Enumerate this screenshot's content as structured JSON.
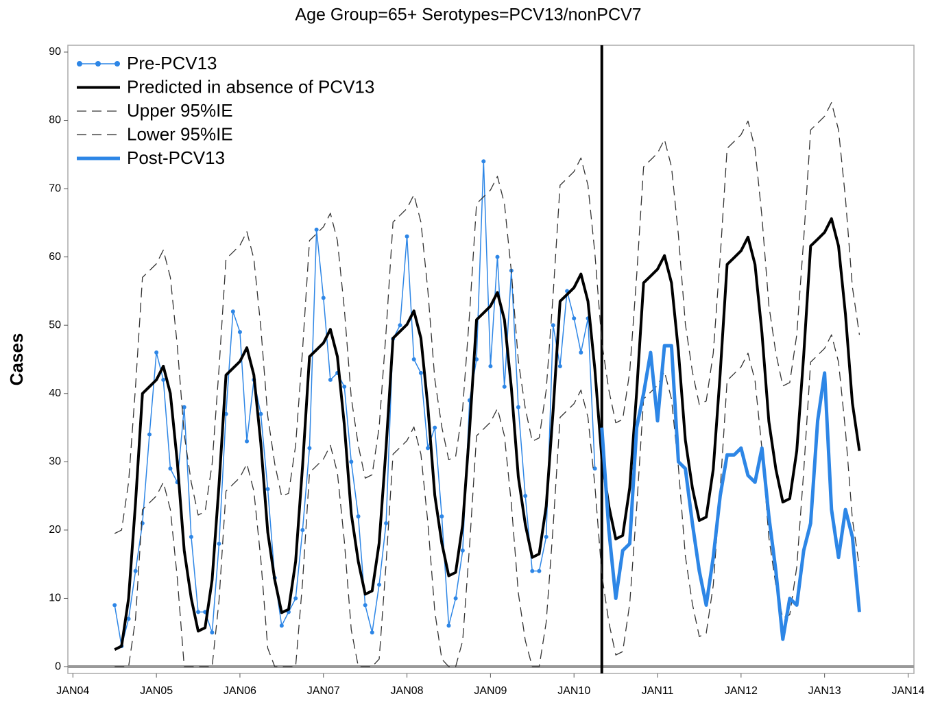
{
  "chart_data": {
    "type": "line",
    "title": "Age Group=65+ Serotypes=PCV13/nonPCV7",
    "ylabel": "Cases",
    "xlim": [
      2003.94,
      2014.07
    ],
    "ylim": [
      -1,
      91
    ],
    "xticks": [
      {
        "value": 2004,
        "label": "JAN04"
      },
      {
        "value": 2005,
        "label": "JAN05"
      },
      {
        "value": 2006,
        "label": "JAN06"
      },
      {
        "value": 2007,
        "label": "JAN07"
      },
      {
        "value": 2008,
        "label": "JAN08"
      },
      {
        "value": 2009,
        "label": "JAN09"
      },
      {
        "value": 2010,
        "label": "JAN10"
      },
      {
        "value": 2011,
        "label": "JAN11"
      },
      {
        "value": 2012,
        "label": "JAN12"
      },
      {
        "value": 2013,
        "label": "JAN13"
      },
      {
        "value": 2014,
        "label": "JAN14"
      }
    ],
    "yticks": [
      0,
      10,
      20,
      30,
      40,
      50,
      60,
      70,
      80,
      90
    ],
    "legend": "upper left",
    "x": [
      2004.5,
      2004.583,
      2004.667,
      2004.75,
      2004.833,
      2004.917,
      2005,
      2005.083,
      2005.167,
      2005.25,
      2005.333,
      2005.417,
      2005.5,
      2005.583,
      2005.667,
      2005.75,
      2005.833,
      2005.917,
      2006,
      2006.083,
      2006.167,
      2006.25,
      2006.333,
      2006.417,
      2006.5,
      2006.583,
      2006.667,
      2006.75,
      2006.833,
      2006.917,
      2007,
      2007.083,
      2007.167,
      2007.25,
      2007.333,
      2007.417,
      2007.5,
      2007.583,
      2007.667,
      2007.75,
      2007.833,
      2007.917,
      2008,
      2008.083,
      2008.167,
      2008.25,
      2008.333,
      2008.417,
      2008.5,
      2008.583,
      2008.667,
      2008.75,
      2008.833,
      2008.917,
      2009,
      2009.083,
      2009.167,
      2009.25,
      2009.333,
      2009.417,
      2009.5,
      2009.583,
      2009.667,
      2009.75,
      2009.833,
      2009.917,
      2010,
      2010.083,
      2010.167,
      2010.25,
      2010.333,
      2010.417,
      2010.5,
      2010.583,
      2010.667,
      2010.75,
      2010.833,
      2010.917,
      2011,
      2011.083,
      2011.167,
      2011.25,
      2011.333,
      2011.417,
      2011.5,
      2011.583,
      2011.667,
      2011.75,
      2011.833,
      2011.917,
      2012,
      2012.083,
      2012.167,
      2012.25,
      2012.333,
      2012.417,
      2012.5,
      2012.583,
      2012.667,
      2012.75,
      2012.833,
      2012.917,
      2013,
      2013.083,
      2013.167,
      2013.25,
      2013.333,
      2013.417
    ],
    "series": [
      {
        "name": "Pre-PCV13",
        "color": "#2d86e6",
        "width": 1.5,
        "dash": false,
        "marker": true,
        "values": [
          9,
          3,
          7,
          14,
          21,
          34,
          46,
          42,
          29,
          27,
          38,
          19,
          8,
          8,
          5,
          18,
          37,
          52,
          49,
          33,
          42,
          37,
          26,
          13,
          6,
          8,
          10,
          20,
          32,
          64,
          54,
          42,
          43,
          41,
          30,
          22,
          9,
          5,
          12,
          21,
          48,
          50,
          63,
          45,
          43,
          32,
          35,
          22,
          6,
          10,
          17,
          39,
          45,
          74,
          44,
          60,
          41,
          58,
          38,
          25,
          14,
          14,
          19,
          50,
          44,
          55,
          51,
          46,
          51,
          29,
          null,
          null,
          null,
          null,
          null,
          null,
          null,
          null,
          null,
          null,
          null,
          null,
          null,
          null,
          null,
          null,
          null,
          null,
          null,
          null,
          null,
          null,
          null,
          null,
          null,
          null,
          null,
          null,
          null,
          null,
          null,
          null,
          null,
          null,
          null,
          null,
          null,
          null
        ]
      },
      {
        "name": "Predicted in absence of PCV13",
        "color": "#000000",
        "width": 4,
        "dash": false,
        "marker": false,
        "values": [
          2.5,
          3,
          10,
          24,
          40,
          41,
          42,
          44,
          40,
          30,
          17,
          10,
          5.2,
          5.7,
          12.7,
          26.7,
          42.7,
          43.7,
          44.7,
          46.7,
          42.7,
          32.7,
          19.7,
          12.7,
          7.9,
          8.4,
          15.4,
          29.4,
          45.4,
          46.4,
          47.4,
          49.4,
          45.4,
          35.4,
          22.4,
          15.4,
          10.6,
          11.1,
          18.1,
          32.1,
          48.1,
          49.1,
          50.1,
          52.1,
          48.1,
          38.1,
          25.1,
          18.1,
          13.3,
          13.8,
          20.8,
          34.8,
          50.8,
          51.8,
          52.8,
          54.8,
          50.8,
          40.8,
          27.8,
          20.8,
          16,
          16.5,
          23.5,
          37.5,
          53.5,
          54.5,
          55.5,
          57.5,
          53.5,
          43.5,
          30.5,
          23.5,
          18.7,
          19.2,
          26.2,
          40.2,
          56.2,
          57.2,
          58.2,
          60.2,
          56.2,
          46.2,
          33.2,
          26.2,
          21.4,
          21.9,
          28.9,
          42.9,
          58.9,
          59.9,
          60.9,
          62.9,
          58.9,
          48.9,
          35.9,
          28.9,
          24.1,
          24.6,
          31.6,
          45.6,
          61.6,
          62.6,
          63.6,
          65.6,
          61.6,
          51.6,
          38.6,
          31.6
        ]
      },
      {
        "name": "Upper 95%IE",
        "color": "#333333",
        "width": 1.3,
        "dash": true,
        "marker": false,
        "values": [
          19.5,
          20,
          27,
          41,
          57,
          58,
          59,
          61,
          57,
          47,
          34,
          27,
          22.2,
          22.7,
          29.7,
          43.7,
          59.7,
          60.7,
          61.7,
          63.7,
          59.7,
          49.7,
          36.7,
          29.7,
          24.9,
          25.4,
          32.4,
          46.4,
          62.4,
          63.4,
          64.4,
          66.4,
          62.4,
          52.4,
          39.4,
          32.4,
          27.6,
          28.1,
          35.1,
          49.1,
          65.1,
          66.1,
          67.1,
          69.1,
          65.1,
          55.1,
          42.1,
          35.1,
          30.3,
          30.8,
          37.8,
          51.8,
          67.8,
          68.8,
          69.8,
          71.8,
          67.8,
          57.8,
          44.8,
          37.8,
          33,
          33.5,
          40.5,
          54.5,
          70.5,
          71.5,
          72.5,
          74.5,
          70.5,
          60.5,
          47.5,
          40.5,
          35.7,
          36.2,
          43.2,
          57.2,
          73.2,
          74.2,
          75.2,
          77.2,
          73.2,
          63.2,
          50.2,
          43.2,
          38.4,
          38.9,
          45.9,
          59.9,
          75.9,
          76.9,
          77.9,
          79.9,
          75.9,
          65.9,
          52.9,
          45.9,
          41.1,
          41.6,
          48.6,
          62.6,
          78.6,
          79.6,
          80.6,
          82.6,
          78.6,
          68.6,
          55.6,
          48.6
        ]
      },
      {
        "name": "Lower 95%IE",
        "color": "#333333",
        "width": 1.3,
        "dash": true,
        "marker": false,
        "values": [
          0,
          0,
          0,
          7,
          23,
          24,
          25,
          27,
          23,
          13,
          0,
          0,
          0,
          0,
          0,
          9.7,
          25.7,
          26.7,
          27.7,
          29.7,
          25.7,
          15.7,
          2.7,
          0,
          0,
          0,
          0,
          12.4,
          28.4,
          29.4,
          30.4,
          32.4,
          28.4,
          18.4,
          5.4,
          0,
          0,
          0,
          1.1,
          15.1,
          31.1,
          32.1,
          33.1,
          35.1,
          31.1,
          21.1,
          8.1,
          1.1,
          0,
          0,
          3.8,
          17.8,
          33.8,
          34.8,
          35.8,
          37.8,
          33.8,
          23.8,
          10.8,
          3.8,
          0,
          0,
          6.5,
          20.5,
          36.5,
          37.5,
          38.5,
          40.5,
          36.5,
          26.5,
          13.5,
          6.5,
          1.7,
          2.2,
          9.2,
          23.2,
          39.2,
          40.2,
          41.2,
          43.2,
          39.2,
          29.2,
          16.2,
          9.2,
          4.4,
          4.9,
          11.9,
          25.9,
          41.9,
          42.9,
          43.9,
          45.9,
          41.9,
          31.9,
          18.9,
          11.9,
          7.1,
          7.6,
          14.6,
          28.6,
          44.6,
          45.6,
          46.6,
          48.6,
          44.6,
          34.6,
          21.6,
          14.6
        ]
      },
      {
        "name": "Post-PCV13",
        "color": "#2d86e6",
        "width": 5,
        "dash": false,
        "marker": false,
        "values": [
          null,
          null,
          null,
          null,
          null,
          null,
          null,
          null,
          null,
          null,
          null,
          null,
          null,
          null,
          null,
          null,
          null,
          null,
          null,
          null,
          null,
          null,
          null,
          null,
          null,
          null,
          null,
          null,
          null,
          null,
          null,
          null,
          null,
          null,
          null,
          null,
          null,
          null,
          null,
          null,
          null,
          null,
          null,
          null,
          null,
          null,
          null,
          null,
          null,
          null,
          null,
          null,
          null,
          null,
          null,
          null,
          null,
          null,
          null,
          null,
          null,
          null,
          null,
          null,
          null,
          null,
          null,
          null,
          null,
          null,
          35,
          20,
          10,
          17,
          18,
          35,
          40,
          46,
          36,
          47,
          47,
          30,
          29,
          21,
          14,
          9,
          16,
          25,
          31,
          31,
          32,
          28,
          27,
          32,
          22,
          14,
          4,
          10,
          9,
          17,
          21,
          36,
          43,
          23,
          16,
          23,
          19,
          8
        ]
      }
    ]
  }
}
